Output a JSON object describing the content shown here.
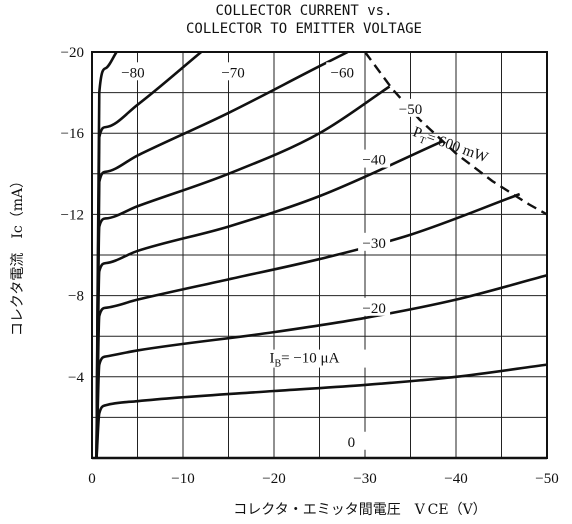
{
  "chart_data": {
    "type": "line",
    "title": [
      "COLLECTOR CURRENT vs.",
      "COLLECTOR TO EMITTER VOLTAGE"
    ],
    "xlabel": "コレクタ・エミッタ間電圧　V CE（V）",
    "ylabel": "コレクタ電流　Ic（mA）",
    "xlim": [
      0,
      -50
    ],
    "ylim": [
      0,
      -20
    ],
    "x_ticks": [
      {
        "value": 0,
        "label": "0"
      },
      {
        "value": -10,
        "label": "−10"
      },
      {
        "value": -20,
        "label": "−20"
      },
      {
        "value": -30,
        "label": "−30"
      },
      {
        "value": -40,
        "label": "−40"
      },
      {
        "value": -50,
        "label": "−50"
      }
    ],
    "y_ticks": [
      {
        "value": -4,
        "label": "−4"
      },
      {
        "value": -8,
        "label": "−8"
      },
      {
        "value": -12,
        "label": "−12"
      },
      {
        "value": -16,
        "label": "−16"
      },
      {
        "value": -20,
        "label": "−20"
      }
    ],
    "grid": true,
    "series": [
      {
        "name": "0",
        "x": [
          0,
          -50
        ],
        "y": [
          0,
          0
        ]
      },
      {
        "name": "−10 μA",
        "x": [
          -0.5,
          -0.8,
          -1.5,
          -5,
          -20,
          -30,
          -40,
          -50
        ],
        "y": [
          0,
          -2.2,
          -2.6,
          -2.8,
          -3.3,
          -3.6,
          -4.0,
          -4.6
        ]
      },
      {
        "name": "−20",
        "x": [
          -0.5,
          -0.8,
          -1.5,
          -5,
          -20,
          -30,
          -40,
          -50
        ],
        "y": [
          0,
          -4.6,
          -5.0,
          -5.3,
          -6.2,
          -6.9,
          -7.8,
          -9.0
        ]
      },
      {
        "name": "−30",
        "x": [
          -0.5,
          -0.8,
          -1.5,
          -5,
          -15,
          -25,
          -35,
          -47
        ],
        "y": [
          0,
          -7.0,
          -7.4,
          -7.8,
          -8.8,
          -9.8,
          -11.0,
          -13.0
        ]
      },
      {
        "name": "−40",
        "x": [
          -0.5,
          -0.8,
          -1.5,
          -5,
          -15,
          -25,
          -38.5
        ],
        "y": [
          0,
          -9.2,
          -9.6,
          -10.2,
          -11.4,
          -12.9,
          -15.6
        ]
      },
      {
        "name": "−50",
        "x": [
          -0.5,
          -0.8,
          -1.5,
          -5,
          -15,
          -25,
          -32.7
        ],
        "y": [
          0,
          -11.4,
          -11.8,
          -12.4,
          -14.0,
          -16.0,
          -18.3
        ]
      },
      {
        "name": "−60",
        "x": [
          -0.5,
          -0.8,
          -1.5,
          -5,
          -15,
          -25,
          -28.1
        ],
        "y": [
          0,
          -13.6,
          -14.1,
          -14.9,
          -17.0,
          -19.3,
          -20
        ]
      },
      {
        "name": "−70",
        "x": [
          -0.5,
          -0.8,
          -1.5,
          -5,
          -12
        ],
        "y": [
          0,
          -15.8,
          -16.3,
          -17.4,
          -20
        ]
      },
      {
        "name": "−80",
        "x": [
          -0.5,
          -0.8,
          -1.5,
          -2.7
        ],
        "y": [
          0,
          -18.0,
          -19.2,
          -20
        ]
      }
    ],
    "curve_labels": [
      {
        "text": "−80",
        "x": -4.5,
        "y": -19.0
      },
      {
        "text": "−70",
        "x": -15.5,
        "y": -19.0
      },
      {
        "text": "−60",
        "x": -27.5,
        "y": -19.0
      },
      {
        "text": "−50",
        "x": -35.0,
        "y": -17.2
      },
      {
        "text": "−40",
        "x": -31.0,
        "y": -14.7
      },
      {
        "text": "−30",
        "x": -31.0,
        "y": -10.6
      },
      {
        "text": "−20",
        "x": -31.0,
        "y": -7.4
      },
      {
        "text": "0",
        "x": -28.5,
        "y": -0.8
      }
    ],
    "ib_label": {
      "prefix": "I",
      "sub": "B",
      "text": "= −10 μA",
      "x": -19.5,
      "y": -4.7
    },
    "power_limit": {
      "prefix": "P",
      "sub": "T",
      "text": "= 600 mW",
      "x": [
        -30,
        -33,
        -36,
        -40,
        -44,
        -48,
        -50
      ],
      "y": [
        -20,
        -18.18,
        -16.67,
        -15.0,
        -13.64,
        -12.5,
        -12.0
      ],
      "label_x": -40.0,
      "label_y": -15.0
    }
  }
}
